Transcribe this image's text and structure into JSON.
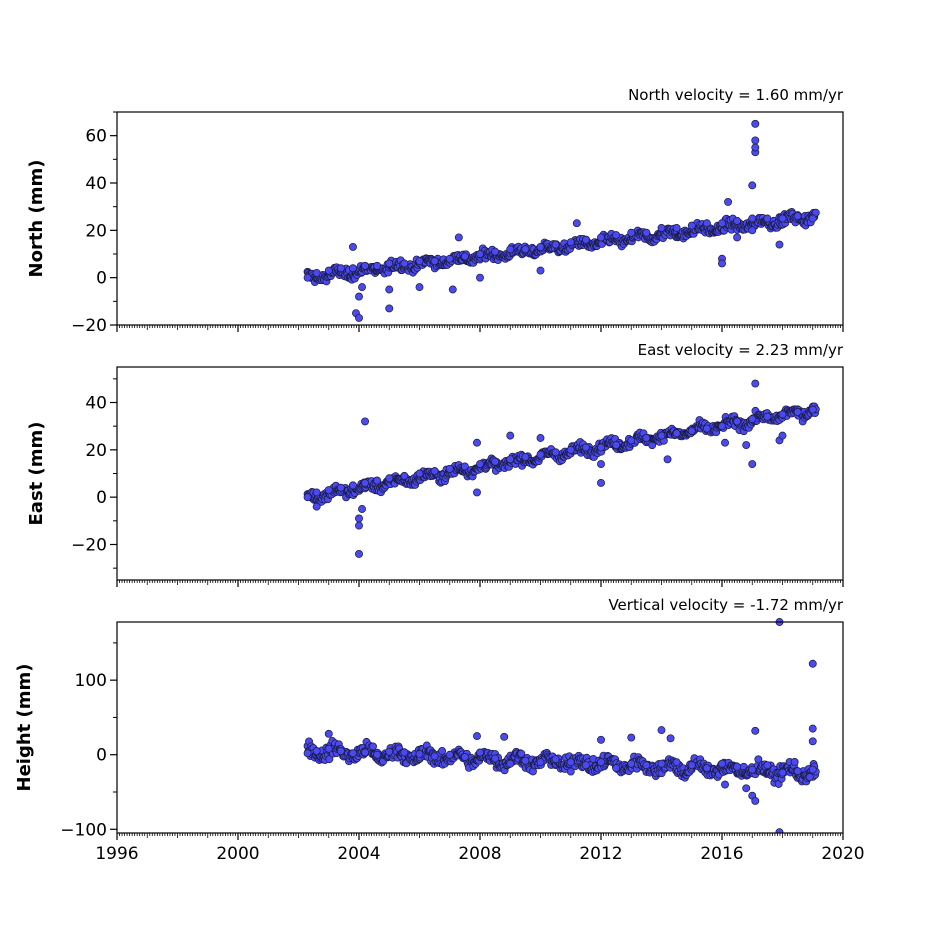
{
  "chart_data": [
    {
      "type": "scatter",
      "title": "North velocity = 1.60 mm/yr",
      "ylabel": "North (mm)",
      "xlabel": "",
      "xlim": [
        1996,
        2020
      ],
      "ylim": [
        -20,
        70
      ],
      "yticks": [
        -20,
        0,
        20,
        40,
        60
      ],
      "ytick_labels": [
        "−20",
        "0",
        "20",
        "40",
        "60"
      ],
      "series": [
        {
          "trend": {
            "x0": 2002.3,
            "y0": 0,
            "x1": 2019.1,
            "y1": 26
          },
          "x": [
            2002.3,
            2002.6,
            2003.0,
            2003.4,
            2003.8,
            2004.2,
            2004.6,
            2005.0,
            2005.5,
            2006.0,
            2006.5,
            2007.0,
            2007.5,
            2008.0,
            2008.5,
            2009.0,
            2009.5,
            2010.0,
            2010.5,
            2011.0,
            2011.5,
            2012.0,
            2012.5,
            2013.0,
            2013.5,
            2014.0,
            2014.5,
            2015.0,
            2015.5,
            2016.0,
            2016.5,
            2017.0,
            2017.5,
            2018.0,
            2018.5,
            2019.0,
            2003.9,
            2004.0,
            2004.0,
            2004.1,
            2005.0,
            2005.0,
            2006.0,
            2007.1,
            2008.0,
            2010.0,
            2016.0,
            2016.0,
            2016.2,
            2017.0,
            2017.1,
            2017.1,
            2017.1,
            2017.1,
            2017.0,
            2017.9,
            2011.2,
            2003.8,
            2007.3,
            2016.5
          ],
          "y": [
            0,
            2,
            3,
            4,
            4,
            5,
            5,
            6,
            6,
            7,
            7,
            8,
            9,
            10,
            11,
            12,
            12,
            13,
            14,
            15,
            16,
            17,
            18,
            19,
            19,
            21,
            21,
            22,
            23,
            23,
            24,
            25,
            25,
            25,
            26,
            25,
            -15,
            -17,
            -8,
            -4,
            -13,
            -5,
            -4,
            -5,
            0,
            3,
            8,
            6,
            32,
            39,
            53,
            55,
            58,
            65,
            20,
            14,
            23,
            13,
            17,
            17
          ]
        }
      ]
    },
    {
      "type": "scatter",
      "title": "East velocity = 2.23 mm/yr",
      "ylabel": "East (mm)",
      "xlabel": "",
      "xlim": [
        1996,
        2020
      ],
      "ylim": [
        -35,
        55
      ],
      "yticks": [
        -20,
        0,
        20,
        40
      ],
      "ytick_labels": [
        "−20",
        "0",
        "20",
        "40"
      ],
      "series": [
        {
          "trend": {
            "x0": 2002.3,
            "y0": 0,
            "x1": 2019.1,
            "y1": 37
          },
          "x": [
            2002.3,
            2002.6,
            2003.0,
            2003.4,
            2003.8,
            2004.2,
            2004.6,
            2005.0,
            2005.5,
            2006.0,
            2006.5,
            2007.0,
            2007.5,
            2008.0,
            2008.5,
            2009.0,
            2009.5,
            2010.0,
            2010.5,
            2011.0,
            2011.5,
            2012.0,
            2012.5,
            2013.0,
            2013.5,
            2014.0,
            2014.5,
            2015.0,
            2015.5,
            2016.0,
            2016.5,
            2017.0,
            2017.5,
            2018.0,
            2018.5,
            2019.0,
            2004.0,
            2004.0,
            2004.0,
            2004.1,
            2004.2,
            2002.6,
            2007.9,
            2007.9,
            2009.0,
            2010.0,
            2012.0,
            2012.0,
            2014.2,
            2017.0,
            2017.1,
            2017.9,
            2018.0,
            2016.1,
            2016.8
          ],
          "y": [
            0,
            2,
            3,
            4,
            5,
            6,
            7,
            8,
            9,
            10,
            11,
            12,
            13,
            14,
            15,
            16,
            17,
            18,
            19,
            20,
            21,
            21,
            22,
            24,
            25,
            26,
            27,
            28,
            29,
            30,
            32,
            33,
            34,
            35,
            36,
            37,
            -24,
            -12,
            -9,
            -5,
            32,
            -4,
            2,
            23,
            26,
            25,
            6,
            14,
            16,
            14,
            48,
            24,
            26,
            23,
            22
          ]
        }
      ]
    },
    {
      "type": "scatter",
      "title": "Vertical velocity = -1.72 mm/yr",
      "ylabel": "Height (mm)",
      "xlabel": "",
      "xlim": [
        1996,
        2020
      ],
      "ylim": [
        -105,
        178
      ],
      "yticks": [
        -100,
        0,
        100
      ],
      "ytick_labels": [
        "−100",
        "0",
        "100"
      ],
      "xticks": [
        1996,
        2000,
        2004,
        2008,
        2012,
        2016,
        2020
      ],
      "xtick_labels": [
        "1996",
        "2000",
        "2004",
        "2008",
        "2012",
        "2016",
        "2020"
      ],
      "series": [
        {
          "trend": {
            "x0": 2002.3,
            "y0": 5,
            "x1": 2019.1,
            "y1": -25
          },
          "x": [
            2002.3,
            2002.6,
            2003.0,
            2003.4,
            2003.8,
            2004.2,
            2004.6,
            2005.0,
            2005.5,
            2006.0,
            2006.5,
            2007.0,
            2007.5,
            2008.0,
            2008.5,
            2009.0,
            2009.5,
            2010.0,
            2010.5,
            2011.0,
            2011.5,
            2012.0,
            2012.5,
            2013.0,
            2013.5,
            2014.0,
            2014.5,
            2015.0,
            2015.5,
            2016.0,
            2016.5,
            2017.0,
            2017.5,
            2018.0,
            2018.5,
            2019.0,
            2017.9,
            2019.0,
            2019.0,
            2019.0,
            2017.9,
            2016.1,
            2014.0,
            2014.3,
            2017.0,
            2017.1,
            2017.1,
            2008.8,
            2007.9,
            2003.0,
            2012.0,
            2013.0,
            2016.8,
            2018.9
          ],
          "y": [
            2,
            5,
            8,
            5,
            2,
            3,
            0,
            4,
            3,
            1,
            -2,
            0,
            -3,
            3,
            -5,
            -12,
            -8,
            -10,
            -6,
            -10,
            -14,
            -10,
            -18,
            -12,
            -14,
            -12,
            -10,
            -14,
            -18,
            -12,
            -16,
            -20,
            -14,
            -24,
            -22,
            -20,
            178,
            122,
            35,
            18,
            -104,
            -40,
            33,
            22,
            -55,
            -62,
            32,
            24,
            25,
            28,
            20,
            23,
            -45,
            -30
          ]
        }
      ]
    }
  ]
}
